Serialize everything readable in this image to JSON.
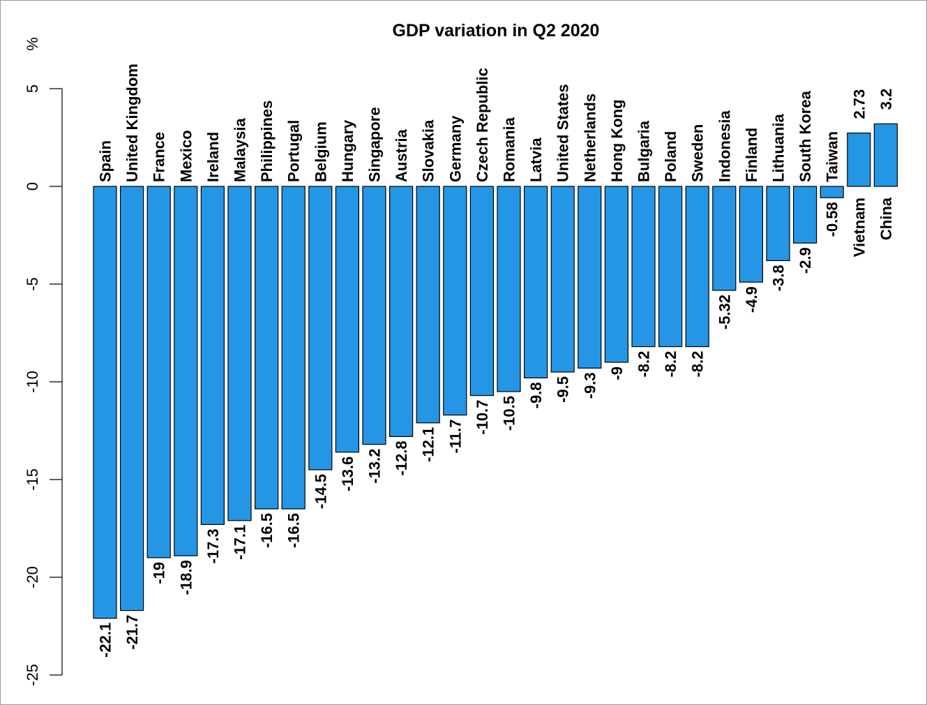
{
  "chart_data": {
    "type": "bar",
    "title": "GDP variation in Q2 2020",
    "ylabel": "%",
    "xlabel": "",
    "ylim": [
      -25,
      5
    ],
    "yticks": [
      5,
      0,
      -5,
      -10,
      -15,
      -20,
      -25
    ],
    "bar_color": "#2596e6",
    "categories": [
      "Spain",
      "United Kingdom",
      "France",
      "Mexico",
      "Ireland",
      "Malaysia",
      "Philippines",
      "Portugal",
      "Belgium",
      "Hungary",
      "Singapore",
      "Austria",
      "Slovakia",
      "Germany",
      "Czech Republic",
      "Romania",
      "Latvia",
      "United States",
      "Netherlands",
      "Hong Kong",
      "Bulgaria",
      "Poland",
      "Sweden",
      "Indonesia",
      "Finland",
      "Lithuania",
      "South Korea",
      "Taiwan",
      "Vietnam",
      "China"
    ],
    "values": [
      -22.1,
      -21.7,
      -19,
      -18.9,
      -17.3,
      -17.1,
      -16.5,
      -16.5,
      -14.5,
      -13.6,
      -13.2,
      -12.8,
      -12.1,
      -11.7,
      -10.7,
      -10.5,
      -9.8,
      -9.5,
      -9.3,
      -9,
      -8.2,
      -8.2,
      -8.2,
      -5.32,
      -4.9,
      -3.8,
      -2.9,
      -0.58,
      2.73,
      3.2
    ],
    "value_labels": [
      "-22.1",
      "-21.7",
      "-19",
      "-18.9",
      "-17.3",
      "-17.1",
      "-16.5",
      "-16.5",
      "-14.5",
      "-13.6",
      "-13.2",
      "-12.8",
      "-12.1",
      "-11.7",
      "-10.7",
      "-10.5",
      "-9.8",
      "-9.5",
      "-9.3",
      "-9",
      "-8.2",
      "-8.2",
      "-8.2",
      "-5.32",
      "-4.9",
      "-3.8",
      "-2.9",
      "-0.58",
      "2.73",
      "3.2"
    ]
  }
}
